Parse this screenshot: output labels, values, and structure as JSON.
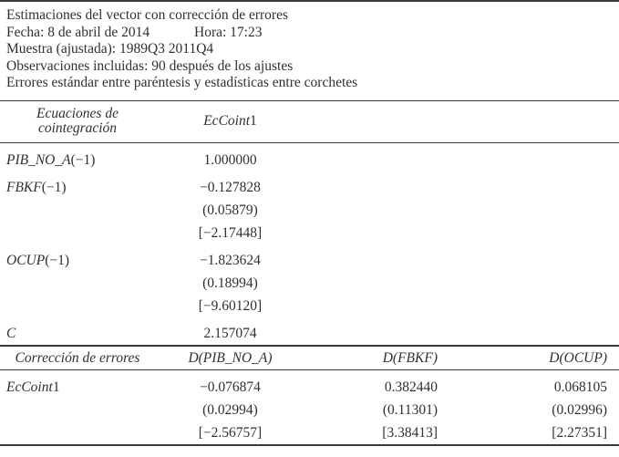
{
  "meta": {
    "title": "Estimaciones del vector con corrección de errores",
    "fecha": "Fecha: 8 de abril de 2014",
    "hora": "Hora: 17:23",
    "muestra": "Muestra (ajustada): 1989Q3 2011Q4",
    "observaciones": "Observaciones incluidas: 90 después de los ajustes",
    "nota": "Errores estándar entre paréntesis y estadísticas entre corchetes"
  },
  "cointegration": {
    "header_col1_line1": "Ecuaciones de",
    "header_col1_line2": "cointegración",
    "header_col2_italic": "EcCoint",
    "header_col2_num": "1",
    "rows": [
      {
        "label_italic": "PIB_NO_A",
        "label_suffix": "(−1)",
        "coef": "1.000000",
        "se": "",
        "t": ""
      },
      {
        "label_italic": "FBKF",
        "label_suffix": "(−1)",
        "coef": "−0.127828",
        "se": "(0.05879)",
        "t": "[−2.17448]"
      },
      {
        "label_italic": "OCUP",
        "label_suffix": "(−1)",
        "coef": "−1.823624",
        "se": "(0.18994)",
        "t": "[−9.60120]"
      },
      {
        "label_italic": "C",
        "label_suffix": "",
        "coef": "2.157074",
        "se": "",
        "t": ""
      }
    ]
  },
  "error_correction": {
    "header_col1": "Corrección de errores",
    "columns": [
      "D(PIB_NO_A)",
      "D(FBKF)",
      "D(OCUP)"
    ],
    "row_label_italic": "EcCoint",
    "row_label_num": "1",
    "coef": [
      "−0.076874",
      "0.382440",
      "0.068105"
    ],
    "se": [
      "(0.02994)",
      "(0.11301)",
      "(0.02996)"
    ],
    "t": [
      "[−2.56757]",
      "[3.38413]",
      "[2.27351]"
    ]
  }
}
